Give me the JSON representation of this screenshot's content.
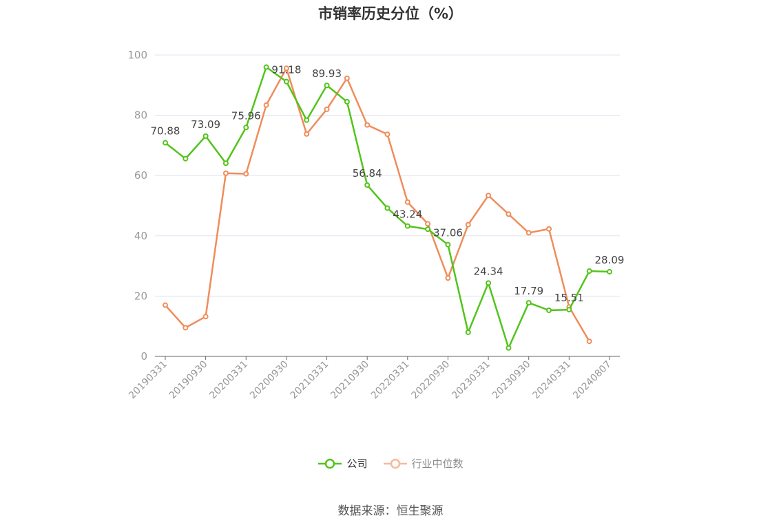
{
  "title": "市销率历史分位（%）",
  "source": "数据来源：恒生聚源",
  "colors": {
    "company": "#52c41a",
    "industry": "#f08c5a",
    "grid": "#e0e3f0",
    "axis": "#666666",
    "tick_text": "#999999"
  },
  "chart_data": {
    "type": "line",
    "title": "市销率历史分位（%）",
    "xlabel": "",
    "ylabel": "",
    "ylim": [
      0,
      100
    ],
    "yticks": [
      0,
      20,
      40,
      60,
      80,
      100
    ],
    "grid": true,
    "legend_position": "bottom",
    "x_tick_labels": [
      "20190331",
      "20190930",
      "20200331",
      "20200930",
      "20210331",
      "20210930",
      "20220331",
      "20220930",
      "20230331",
      "20230930",
      "20240331",
      "20240807"
    ],
    "series": [
      {
        "name": "公司",
        "color": "#52c41a",
        "values": [
          70.88,
          65.6,
          73.09,
          64.1,
          75.96,
          96.0,
          91.18,
          78.4,
          89.93,
          84.5,
          56.84,
          49.2,
          43.24,
          42.2,
          37.06,
          8.0,
          24.34,
          2.8,
          17.79,
          15.3,
          15.51,
          28.3,
          28.09
        ],
        "labels": [
          "70.88",
          "",
          "73.09",
          "",
          "75.96",
          "",
          "91.18",
          "",
          "89.93",
          "",
          "56.84",
          "",
          "43.24",
          "",
          "37.06",
          "",
          "24.34",
          "",
          "17.79",
          "",
          "15.51",
          "",
          "28.09"
        ]
      },
      {
        "name": "行业中位数",
        "color": "#f08c5a",
        "values": [
          17.0,
          9.5,
          13.2,
          60.8,
          60.6,
          83.4,
          95.6,
          73.8,
          82.0,
          92.3,
          76.8,
          73.7,
          51.2,
          44.0,
          26.0,
          43.7,
          53.4,
          47.2,
          41.0,
          42.3,
          16.4,
          5.0
        ]
      }
    ]
  }
}
